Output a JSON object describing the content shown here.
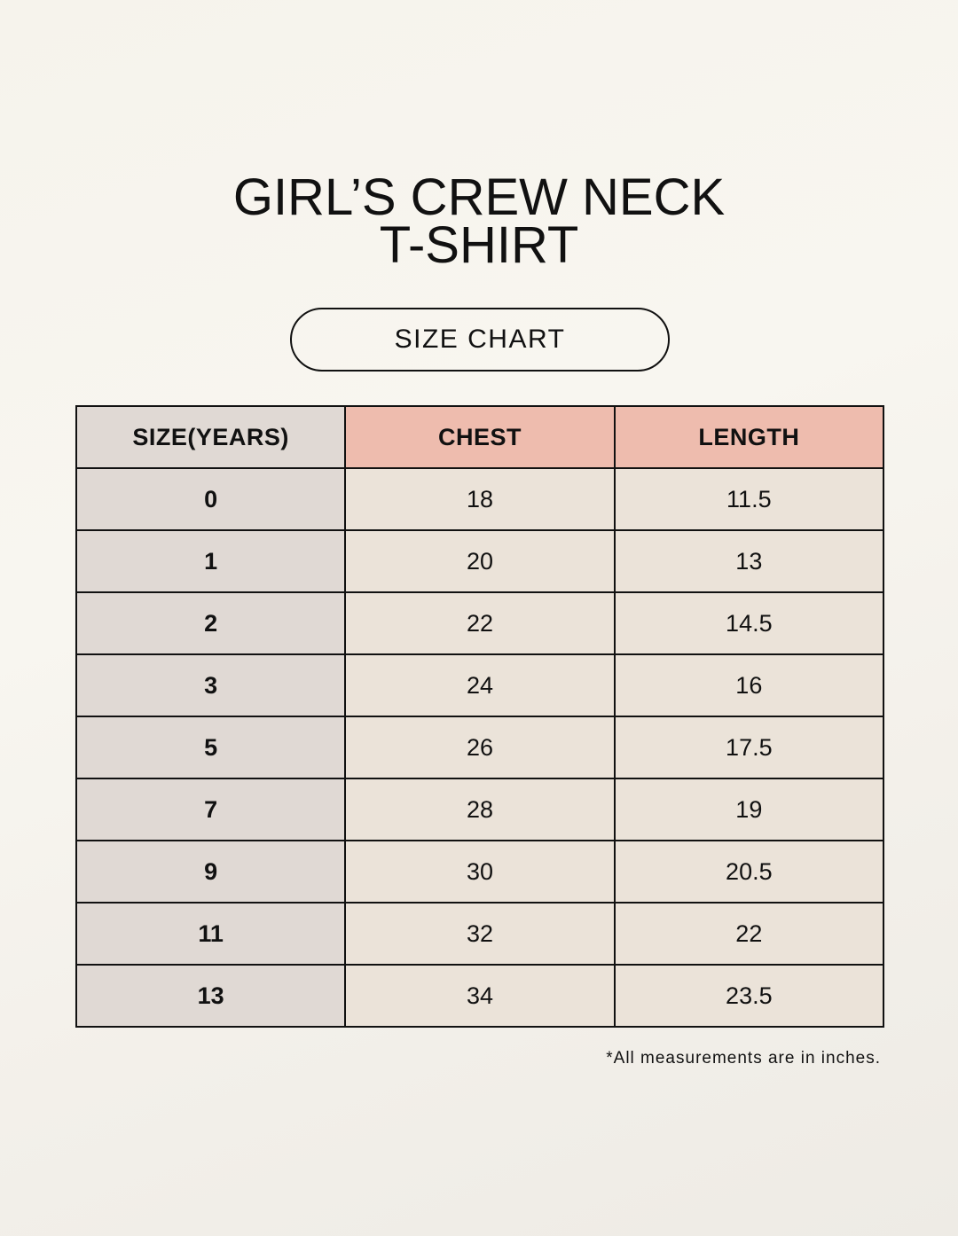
{
  "title": {
    "line1": "GIRL’S CREW NECK",
    "line2": "T-SHIRT"
  },
  "subtitle": "SIZE CHART",
  "colors": {
    "header_accent": "#eebcae",
    "size_column": "#e0d9d4",
    "cell": "#ebe3d9"
  },
  "table": {
    "headers": [
      "SIZE(YEARS)",
      "CHEST",
      "LENGTH"
    ],
    "rows": [
      [
        "0",
        "18",
        "11.5"
      ],
      [
        "1",
        "20",
        "13"
      ],
      [
        "2",
        "22",
        "14.5"
      ],
      [
        "3",
        "24",
        "16"
      ],
      [
        "5",
        "26",
        "17.5"
      ],
      [
        "7",
        "28",
        "19"
      ],
      [
        "9",
        "30",
        "20.5"
      ],
      [
        "11",
        "32",
        "22"
      ],
      [
        "13",
        "34",
        "23.5"
      ]
    ]
  },
  "note": "*All measurements are in inches."
}
